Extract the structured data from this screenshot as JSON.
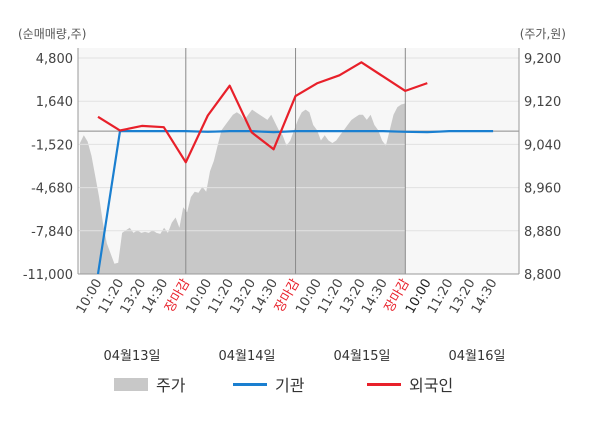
{
  "chart_data": {
    "type": "line",
    "left_axis": {
      "unit_label": "(순매매량,주)",
      "ticks": [
        "4,800",
        "1,640",
        "-1,520",
        "-4,680",
        "-7,840",
        "-11,000"
      ],
      "range": [
        -11000,
        6400
      ]
    },
    "right_axis": {
      "unit_label": "(주가,원)",
      "ticks": [
        "9,200",
        "9,120",
        "9,040",
        "8,960",
        "8,880",
        "8,800"
      ],
      "range": [
        8800,
        9240
      ]
    },
    "x_tick_labels": [
      {
        "text": "10:00",
        "style": "normal"
      },
      {
        "text": "11:20",
        "style": "normal"
      },
      {
        "text": "13:20",
        "style": "normal"
      },
      {
        "text": "14:30",
        "style": "normal"
      },
      {
        "text": "장마감",
        "style": "close"
      },
      {
        "text": "10:00",
        "style": "normal"
      },
      {
        "text": "11:20",
        "style": "normal"
      },
      {
        "text": "13:20",
        "style": "normal"
      },
      {
        "text": "14:30",
        "style": "normal"
      },
      {
        "text": "장마감",
        "style": "close"
      },
      {
        "text": "10:00",
        "style": "normal"
      },
      {
        "text": "11:20",
        "style": "normal"
      },
      {
        "text": "13:20",
        "style": "normal"
      },
      {
        "text": "14:30",
        "style": "normal"
      },
      {
        "text": "장마감",
        "style": "close"
      },
      {
        "text": "10:00",
        "style": "bold"
      },
      {
        "text": "11:20",
        "style": "normal"
      },
      {
        "text": "13:20",
        "style": "normal"
      },
      {
        "text": "14:30",
        "style": "normal"
      }
    ],
    "date_labels": [
      "04월13일",
      "04월14일",
      "04월15일",
      "04월16일"
    ],
    "grid": true,
    "legend_position": "bottom",
    "series": [
      {
        "name": "주가",
        "type": "area",
        "axis": "right",
        "color": "#c8c8c8",
        "values": [
          9055,
          9070,
          9058,
          9030,
          8990,
          8950,
          8900,
          8860,
          8840,
          8820,
          8822,
          8880,
          8885,
          8890,
          8880,
          8885,
          8880,
          8882,
          8880,
          8885,
          8880,
          8878,
          8890,
          8880,
          8900,
          8910,
          8890,
          8930,
          8920,
          8950,
          8960,
          8958,
          8970,
          8960,
          9000,
          9020,
          9050,
          9080,
          9090,
          9100,
          9110,
          9115,
          9110,
          9100,
          9110,
          9120,
          9115,
          9110,
          9105,
          9100,
          9110,
          9095,
          9080,
          9070,
          9050,
          9060,
          9080,
          9100,
          9115,
          9120,
          9115,
          9090,
          9080,
          9060,
          9070,
          9060,
          9055,
          9060,
          9070,
          9080,
          9090,
          9100,
          9105,
          9110,
          9110,
          9100,
          9110,
          9090,
          9080,
          9060,
          9050,
          9080,
          9110,
          9125,
          9130,
          9132
        ]
      },
      {
        "name": "기관",
        "type": "line",
        "axis": "left",
        "color": "#1a7fd0",
        "values": [
          -11000,
          0,
          0,
          0,
          0,
          -50,
          0,
          0,
          -80,
          0,
          0,
          0,
          0,
          0,
          -50,
          -80,
          0,
          0,
          0
        ]
      },
      {
        "name": "외국인",
        "type": "line",
        "axis": "left",
        "color": "#e8202a",
        "values": [
          1100,
          50,
          400,
          300,
          -2400,
          1200,
          3500,
          -100,
          -1400,
          2700,
          3700,
          4300,
          5300,
          4200,
          3100,
          3700
        ]
      }
    ]
  },
  "legend": {
    "items": [
      {
        "label": "주가",
        "color": "#c8c8c8"
      },
      {
        "label": "기관",
        "color": "#1a7fd0"
      },
      {
        "label": "외국인",
        "color": "#e8202a"
      }
    ]
  }
}
